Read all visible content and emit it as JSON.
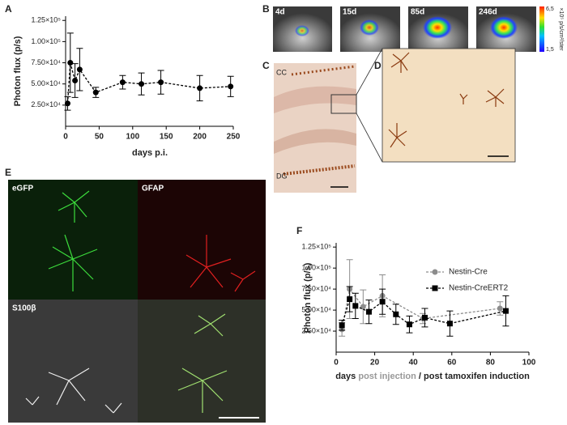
{
  "panels": {
    "letters": [
      "A",
      "B",
      "C",
      "D",
      "E",
      "F"
    ],
    "b_labels": [
      "4d",
      "15d",
      "85d",
      "246d"
    ],
    "colorbar": {
      "max": "6,5",
      "min": "1,5",
      "unit": "×10⁵ p/s/cm²/ster"
    },
    "c_labels": [
      "CC",
      "DG"
    ],
    "e_labels": [
      "eGFP",
      "GFAP",
      "S100β"
    ]
  },
  "chart_data": [
    {
      "type": "line",
      "ylabel": "Photon flux (p/s)",
      "xlabel": "days p.i.",
      "xlim": [
        0,
        250
      ],
      "xticks": [
        0,
        50,
        100,
        150,
        200,
        250
      ],
      "ylim": [
        0,
        130000
      ],
      "yticks": [
        {
          "value": 25000,
          "label": "2.50×10⁴"
        },
        {
          "value": 50000,
          "label": "5.00×10⁴"
        },
        {
          "value": 75000,
          "label": "7.50×10⁴"
        },
        {
          "value": 100000,
          "label": "1.00×10⁵"
        },
        {
          "value": 125000,
          "label": "1.25×10⁵"
        }
      ],
      "series": [
        {
          "name": null,
          "color": "#000000",
          "dash": true,
          "marker": "circle",
          "x": [
            3,
            7,
            14,
            21,
            45,
            85,
            113,
            142,
            200,
            246
          ],
          "values": [
            27000,
            75000,
            54000,
            67000,
            40000,
            52000,
            50000,
            52000,
            45000,
            47000
          ],
          "errors": [
            8000,
            35000,
            20000,
            25000,
            6000,
            8000,
            13000,
            14000,
            15000,
            12000
          ]
        }
      ]
    },
    {
      "type": "line",
      "ylabel": "Photon flux (p/s)",
      "xlabel_parts": [
        "days",
        "post injection",
        "/ post tamoxifen induction"
      ],
      "xlim": [
        0,
        100
      ],
      "xticks": [
        0,
        20,
        40,
        60,
        80,
        100
      ],
      "ylim": [
        0,
        130000
      ],
      "yticks": [
        {
          "value": 25000,
          "label": "2.50×10⁴"
        },
        {
          "value": 50000,
          "label": "5.00×10⁴"
        },
        {
          "value": 75000,
          "label": "7.50×10⁴"
        },
        {
          "value": 100000,
          "label": "1.00×10⁵"
        },
        {
          "value": 125000,
          "label": "1.25×10⁵"
        }
      ],
      "series": [
        {
          "name": "Nestin-Cre",
          "color": "#8c8c8c",
          "dash": true,
          "marker": "circle",
          "x": [
            3,
            7,
            14,
            24,
            45,
            85
          ],
          "values": [
            27000,
            75000,
            54000,
            67000,
            40000,
            52000
          ],
          "errors": [
            8000,
            35000,
            20000,
            25000,
            6000,
            8000
          ]
        },
        {
          "name": "Nestin-CreERT2",
          "color": "#000000",
          "dash": true,
          "marker": "square",
          "x": [
            3,
            7,
            10,
            17,
            24,
            31,
            38,
            46,
            59,
            88
          ],
          "values": [
            32000,
            63000,
            55000,
            48000,
            60000,
            45000,
            33000,
            41000,
            34000,
            49000
          ],
          "errors": [
            6000,
            15000,
            15000,
            14000,
            15000,
            12000,
            10000,
            11000,
            15000,
            18000
          ]
        }
      ]
    }
  ]
}
